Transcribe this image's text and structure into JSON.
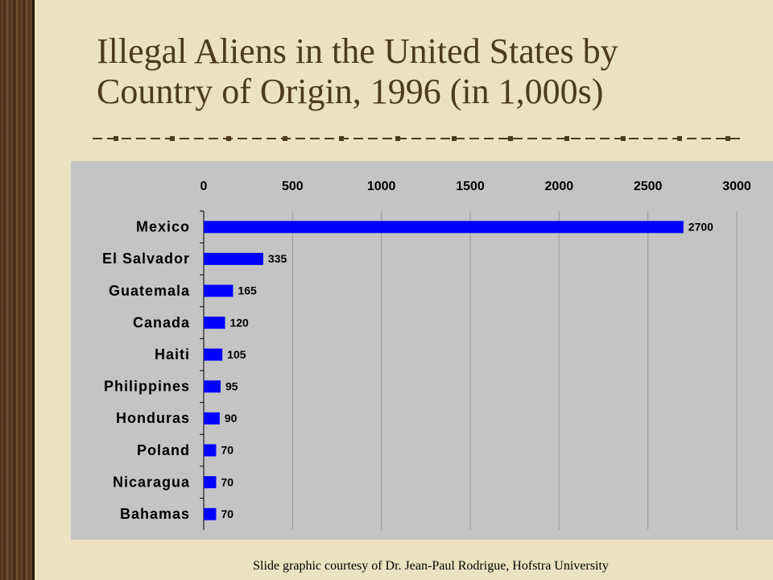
{
  "chart_data": {
    "type": "bar",
    "orientation": "horizontal",
    "title": [
      "Illegal Aliens in the United States by",
      "Country of Origin, 1996 (in 1,000s)"
    ],
    "categories": [
      "Mexico",
      "El Salvador",
      "Guatemala",
      "Canada",
      "Haiti",
      "Philippines",
      "Honduras",
      "Poland",
      "Nicaragua",
      "Bahamas"
    ],
    "values": [
      2700,
      335,
      165,
      120,
      105,
      95,
      90,
      70,
      70,
      70
    ],
    "color": "#0000ff",
    "xlim": [
      0,
      3000
    ],
    "xticks": [
      0,
      500,
      1000,
      1500,
      2000,
      2500,
      3000
    ],
    "grid": true
  },
  "credit": "Slide graphic courtesy of Dr. Jean-Paul Rodrigue, Hofstra University"
}
